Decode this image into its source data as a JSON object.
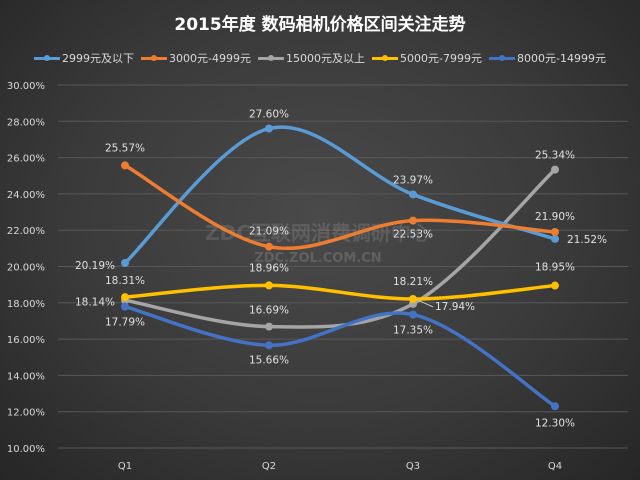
{
  "chart_data": {
    "type": "line",
    "title": "2015年度 数码相机价格区间关注走势",
    "categories": [
      "Q1",
      "Q2",
      "Q3",
      "Q4"
    ],
    "ylim": [
      10,
      30
    ],
    "yticks": [
      "10.00%",
      "12.00%",
      "14.00%",
      "16.00%",
      "18.00%",
      "20.00%",
      "22.00%",
      "24.00%",
      "26.00%",
      "28.00%",
      "30.00%"
    ],
    "grid": true,
    "legend": "top",
    "smooth": true,
    "series": [
      {
        "name": "2999元及以下",
        "color": "#5b9bd5",
        "values": [
          20.19,
          27.6,
          23.97,
          21.52
        ],
        "labels": [
          "20.19%",
          "27.60%",
          "23.97%",
          "21.52%"
        ]
      },
      {
        "name": "3000元-4999元",
        "color": "#ed7d31",
        "values": [
          25.57,
          21.09,
          22.53,
          21.9
        ],
        "labels": [
          "25.57%",
          "21.09%",
          "22.53%",
          "21.90%"
        ]
      },
      {
        "name": "15000元及以上",
        "color": "#a5a5a5",
        "values": [
          18.14,
          16.69,
          17.94,
          25.34
        ],
        "labels": [
          "18.14%",
          "16.69%",
          "17.94%",
          "25.34%"
        ]
      },
      {
        "name": "5000元-7999元",
        "color": "#ffc000",
        "values": [
          18.31,
          18.96,
          18.21,
          18.95
        ],
        "labels": [
          "18.31%",
          "18.96%",
          "18.21%",
          "18.95%"
        ]
      },
      {
        "name": "8000元-14999元",
        "color": "#4472c4",
        "values": [
          17.79,
          15.66,
          17.35,
          12.3
        ],
        "labels": [
          "17.79%",
          "15.66%",
          "17.35%",
          "12.30%"
        ]
      }
    ]
  },
  "watermark": "ZDC互联网消费调研中心 ZDC.ZOL.COM.CN"
}
